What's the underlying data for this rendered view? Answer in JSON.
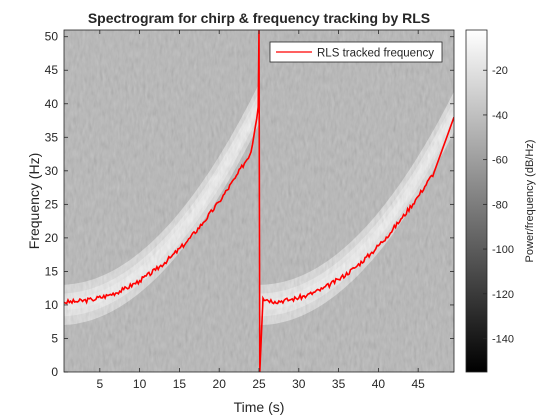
{
  "chart_data": {
    "type": "heatmap",
    "title": "Spectrogram for chirp & frequency tracking by RLS",
    "xlabel": "Time (s)",
    "ylabel": "Frequency (Hz)",
    "xlim": [
      0.5,
      49.5
    ],
    "ylim": [
      0,
      51
    ],
    "xticks": [
      5,
      10,
      15,
      20,
      25,
      30,
      35,
      40,
      45
    ],
    "yticks": [
      0,
      5,
      10,
      15,
      20,
      25,
      30,
      35,
      40,
      45,
      50
    ],
    "colorbar": {
      "label": "Power/frequency (dB/Hz)",
      "range": [
        -155,
        -2
      ],
      "ticks": [
        -140,
        -120,
        -100,
        -80,
        -60,
        -40,
        -20
      ],
      "colormap": "gray"
    },
    "background_power_db": -45,
    "chirp_segments": [
      {
        "t_start": 0,
        "t_end": 25,
        "f_start": 10,
        "f_end": 40,
        "power_db": -8
      },
      {
        "t_start": 25,
        "t_end": 50,
        "f_start": 10,
        "f_end": 40,
        "power_db": -8
      }
    ],
    "legend": {
      "position": "top-right",
      "entries": [
        "RLS tracked frequency"
      ]
    },
    "series": [
      {
        "name": "RLS tracked frequency",
        "color": "#ff0000",
        "x": [
          0.5,
          2,
          4,
          6,
          8,
          10,
          12,
          14,
          16,
          18,
          20,
          22,
          24,
          24.9,
          25,
          25.1,
          25.5,
          27,
          29,
          31,
          33,
          35,
          37,
          39,
          41,
          43,
          45,
          47,
          49.5
        ],
        "y": [
          10.4,
          10.5,
          10.8,
          11.4,
          12.3,
          13.6,
          15.2,
          17.2,
          19.5,
          22.3,
          25.4,
          28.9,
          32.8,
          39.5,
          51,
          0,
          11.0,
          10.5,
          10.8,
          11.4,
          12.4,
          13.8,
          15.5,
          17.6,
          20.1,
          23.0,
          26.2,
          29.8,
          38.0
        ]
      }
    ],
    "grid": false
  }
}
